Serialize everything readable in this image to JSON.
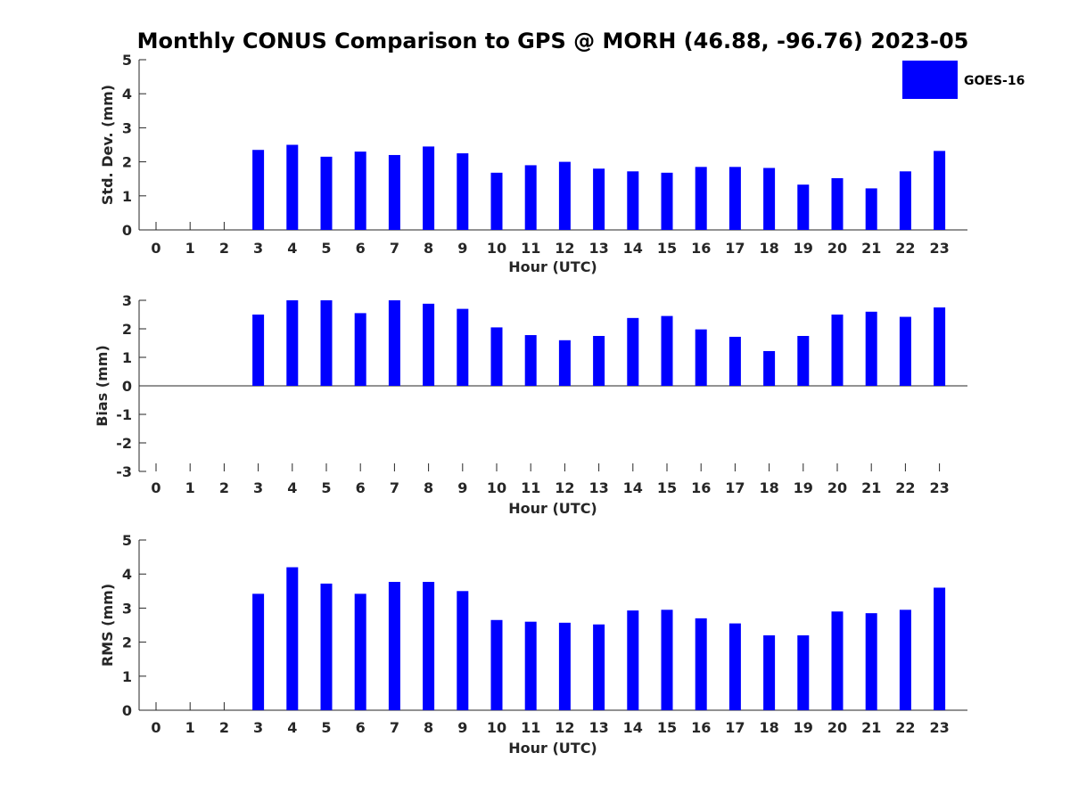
{
  "title": "Monthly CONUS Comparison to GPS @ MORH (46.88, -96.76) 2023-05",
  "legend": {
    "label": "GOES-16",
    "color": "#0000ff"
  },
  "colors": {
    "bar": "#0000ff",
    "axis": "#262626"
  },
  "chart_data": [
    {
      "type": "bar",
      "xlabel": "Hour (UTC)",
      "ylabel": "Std. Dev. (mm)",
      "ylim": [
        0,
        5
      ],
      "yticks": [
        0,
        1,
        2,
        3,
        4,
        5
      ],
      "categories": [
        "0",
        "1",
        "2",
        "3",
        "4",
        "5",
        "6",
        "7",
        "8",
        "9",
        "10",
        "11",
        "12",
        "13",
        "14",
        "15",
        "16",
        "17",
        "18",
        "19",
        "20",
        "21",
        "22",
        "23"
      ],
      "series": [
        {
          "name": "GOES-16",
          "values": [
            null,
            null,
            null,
            2.35,
            2.5,
            2.15,
            2.3,
            2.2,
            2.45,
            2.25,
            1.68,
            1.9,
            2.0,
            1.8,
            1.72,
            1.68,
            1.85,
            1.85,
            1.82,
            1.33,
            1.52,
            1.22,
            1.72,
            2.32
          ]
        }
      ]
    },
    {
      "type": "bar",
      "xlabel": "Hour (UTC)",
      "ylabel": "Bias (mm)",
      "ylim": [
        -3,
        3
      ],
      "yticks": [
        -3,
        -2,
        -1,
        0,
        1,
        2,
        3
      ],
      "categories": [
        "0",
        "1",
        "2",
        "3",
        "4",
        "5",
        "6",
        "7",
        "8",
        "9",
        "10",
        "11",
        "12",
        "13",
        "14",
        "15",
        "16",
        "17",
        "18",
        "19",
        "20",
        "21",
        "22",
        "23"
      ],
      "series": [
        {
          "name": "GOES-16",
          "values": [
            null,
            null,
            null,
            2.5,
            3.0,
            3.0,
            2.55,
            3.0,
            2.88,
            2.7,
            2.05,
            1.78,
            1.6,
            1.75,
            2.38,
            2.45,
            1.98,
            1.72,
            1.22,
            1.75,
            2.5,
            2.6,
            2.42,
            2.75
          ]
        }
      ]
    },
    {
      "type": "bar",
      "xlabel": "Hour (UTC)",
      "ylabel": "RMS (mm)",
      "ylim": [
        0,
        5
      ],
      "yticks": [
        0,
        1,
        2,
        3,
        4,
        5
      ],
      "categories": [
        "0",
        "1",
        "2",
        "3",
        "4",
        "5",
        "6",
        "7",
        "8",
        "9",
        "10",
        "11",
        "12",
        "13",
        "14",
        "15",
        "16",
        "17",
        "18",
        "19",
        "20",
        "21",
        "22",
        "23"
      ],
      "series": [
        {
          "name": "GOES-16",
          "values": [
            null,
            null,
            null,
            3.42,
            4.2,
            3.72,
            3.42,
            3.77,
            3.77,
            3.5,
            2.65,
            2.6,
            2.57,
            2.52,
            2.93,
            2.95,
            2.7,
            2.55,
            2.2,
            2.2,
            2.9,
            2.85,
            2.95,
            3.6
          ]
        }
      ]
    }
  ]
}
